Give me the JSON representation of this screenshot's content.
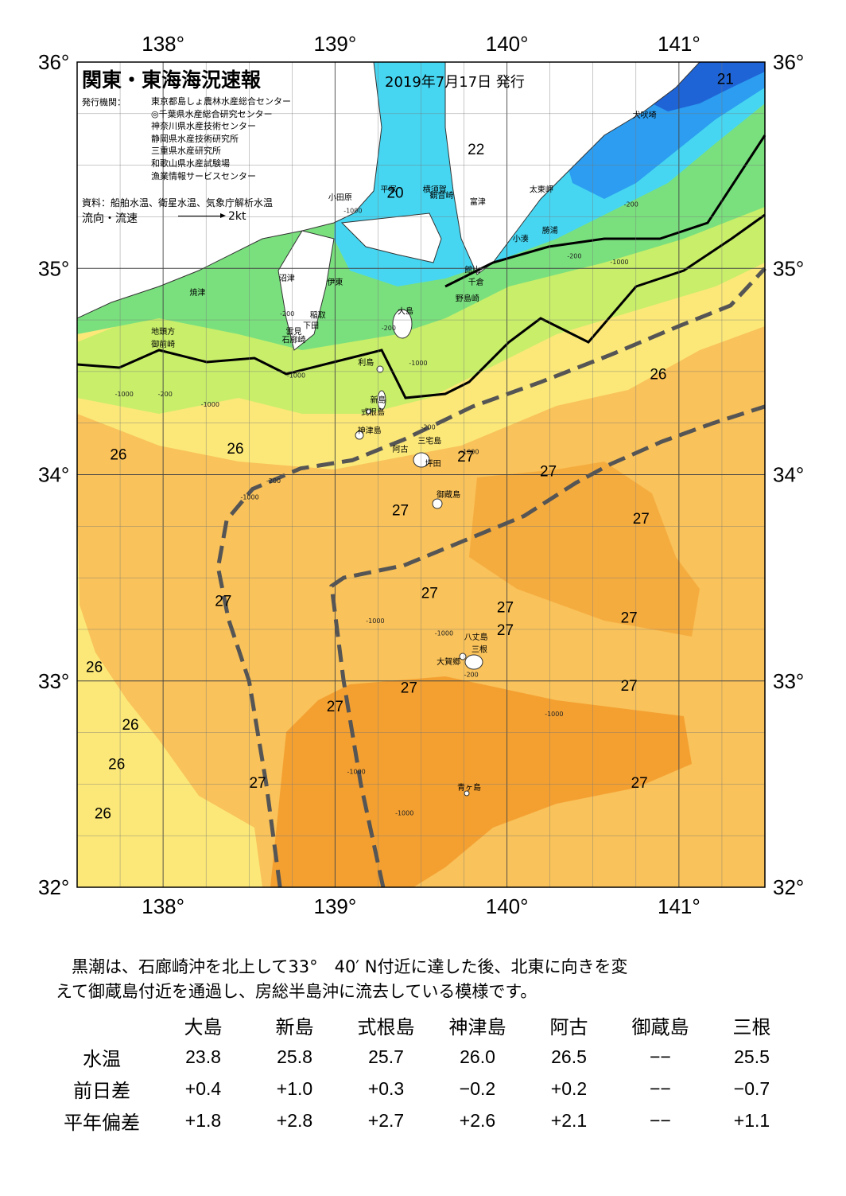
{
  "header": {
    "title": "関東・東海海況速報",
    "date": "2019年7月17日 発行",
    "issuer_key": "発行機関：",
    "issuers": [
      "東京都島しょ農林水産総合センター",
      "◎千葉県水産総合研究センター",
      "神奈川県水産技術センター",
      "静岡県水産技術研究所",
      "三重県水産研究所",
      "和歌山県水産試験場",
      "漁業情報サービスセンター"
    ],
    "source": "資料：船舶水温、衛星水温、気象庁解析水温",
    "legend_label": "流向・流速",
    "legend_speed": "2kt"
  },
  "axes": {
    "lon_ticks": [
      "138°",
      "139°",
      "140°",
      "141°"
    ],
    "lat_ticks": [
      "36°",
      "35°",
      "34°",
      "33°",
      "32°"
    ],
    "lon_values": [
      138,
      139,
      140,
      141
    ],
    "lat_values": [
      36,
      35,
      34,
      33,
      32
    ],
    "lon_range": [
      137.5,
      141.5
    ],
    "lat_range": [
      32,
      36
    ]
  },
  "colors": {
    "t20": "#3a2a90",
    "t21": "#1f64d6",
    "t22": "#2c9df0",
    "t23": "#46d6f2",
    "t24": "#7ae07e",
    "t25": "#c8ee6a",
    "t26": "#fbe878",
    "t27": "#f9c25a",
    "t28": "#f39a2a",
    "kuroshio": "#555555"
  },
  "isotherm_labels": [
    {
      "text": "21",
      "lon": 141.27,
      "lat": 35.92
    },
    {
      "text": "22",
      "lon": 139.82,
      "lat": 35.58
    },
    {
      "text": "20",
      "lon": 139.35,
      "lat": 35.37
    },
    {
      "text": "26",
      "lon": 140.88,
      "lat": 34.49
    },
    {
      "text": "26",
      "lon": 137.74,
      "lat": 34.1
    },
    {
      "text": "26",
      "lon": 138.42,
      "lat": 34.13
    },
    {
      "text": "27",
      "lon": 139.76,
      "lat": 34.09
    },
    {
      "text": "27",
      "lon": 140.24,
      "lat": 34.02
    },
    {
      "text": "27",
      "lon": 139.38,
      "lat": 33.83
    },
    {
      "text": "27",
      "lon": 140.78,
      "lat": 33.79
    },
    {
      "text": "27",
      "lon": 139.55,
      "lat": 33.43
    },
    {
      "text": "27",
      "lon": 139.99,
      "lat": 33.36
    },
    {
      "text": "27",
      "lon": 138.35,
      "lat": 33.39
    },
    {
      "text": "27",
      "lon": 140.71,
      "lat": 33.31
    },
    {
      "text": "27",
      "lon": 139.99,
      "lat": 33.25
    },
    {
      "text": "26",
      "lon": 137.6,
      "lat": 33.07
    },
    {
      "text": "27",
      "lon": 139.43,
      "lat": 32.97
    },
    {
      "text": "27",
      "lon": 140.71,
      "lat": 32.98
    },
    {
      "text": "27",
      "lon": 139.0,
      "lat": 32.88
    },
    {
      "text": "26",
      "lon": 137.81,
      "lat": 32.79
    },
    {
      "text": "26",
      "lon": 137.73,
      "lat": 32.6
    },
    {
      "text": "27",
      "lon": 138.55,
      "lat": 32.51
    },
    {
      "text": "27",
      "lon": 140.77,
      "lat": 32.51
    },
    {
      "text": "26",
      "lon": 137.65,
      "lat": 32.36
    }
  ],
  "places": [
    {
      "name": "犬吠埼",
      "lon": 140.8,
      "lat": 35.73
    },
    {
      "name": "太東岬",
      "lon": 140.2,
      "lat": 35.37
    },
    {
      "name": "勝浦",
      "lon": 140.25,
      "lat": 35.17
    },
    {
      "name": "小湊",
      "lon": 140.08,
      "lat": 35.13
    },
    {
      "name": "富津",
      "lon": 139.83,
      "lat": 35.31
    },
    {
      "name": "横須賀",
      "lon": 139.58,
      "lat": 35.37
    },
    {
      "name": "観音崎",
      "lon": 139.62,
      "lat": 35.34
    },
    {
      "name": "平塚",
      "lon": 139.31,
      "lat": 35.37
    },
    {
      "name": "小田原",
      "lon": 139.03,
      "lat": 35.33
    },
    {
      "name": "館山",
      "lon": 139.8,
      "lat": 34.98
    },
    {
      "name": "千倉",
      "lon": 139.82,
      "lat": 34.92
    },
    {
      "name": "野島崎",
      "lon": 139.77,
      "lat": 34.84
    },
    {
      "name": "沼津",
      "lon": 138.72,
      "lat": 34.94
    },
    {
      "name": "伊東",
      "lon": 139.0,
      "lat": 34.92
    },
    {
      "name": "焼津",
      "lon": 138.2,
      "lat": 34.87
    },
    {
      "name": "大島",
      "lon": 139.41,
      "lat": 34.78
    },
    {
      "name": "稲取",
      "lon": 138.9,
      "lat": 34.76
    },
    {
      "name": "下田",
      "lon": 138.86,
      "lat": 34.71
    },
    {
      "name": "雲見",
      "lon": 138.76,
      "lat": 34.68
    },
    {
      "name": "石廊崎",
      "lon": 138.76,
      "lat": 34.64
    },
    {
      "name": "地頭方",
      "lon": 138.0,
      "lat": 34.68
    },
    {
      "name": "御前崎",
      "lon": 138.0,
      "lat": 34.62
    },
    {
      "name": "利島",
      "lon": 139.18,
      "lat": 34.53
    },
    {
      "name": "新島",
      "lon": 139.25,
      "lat": 34.35
    },
    {
      "name": "式根島",
      "lon": 139.22,
      "lat": 34.29
    },
    {
      "name": "神津島",
      "lon": 139.2,
      "lat": 34.2
    },
    {
      "name": "三宅島",
      "lon": 139.55,
      "lat": 34.15
    },
    {
      "name": "阿古",
      "lon": 139.38,
      "lat": 34.11
    },
    {
      "name": "坪田",
      "lon": 139.57,
      "lat": 34.04
    },
    {
      "name": "御蔵島",
      "lon": 139.66,
      "lat": 33.89
    },
    {
      "name": "八丈島",
      "lon": 139.82,
      "lat": 33.2
    },
    {
      "name": "三根",
      "lon": 139.84,
      "lat": 33.14
    },
    {
      "name": "大賀郷",
      "lon": 139.66,
      "lat": 33.08
    },
    {
      "name": "青ヶ島",
      "lon": 139.78,
      "lat": 32.47
    }
  ],
  "depth_labels": [
    {
      "text": "-1000",
      "lon": 137.72,
      "lat": 34.38
    },
    {
      "text": "-200",
      "lon": 137.97,
      "lat": 34.38
    },
    {
      "text": "-1000",
      "lon": 138.22,
      "lat": 34.33
    },
    {
      "text": "-200",
      "lon": 138.68,
      "lat": 34.77
    },
    {
      "text": "-1000",
      "lon": 138.72,
      "lat": 34.47
    },
    {
      "text": "-1000",
      "lon": 138.45,
      "lat": 33.88
    },
    {
      "text": "-200",
      "lon": 138.6,
      "lat": 33.96
    },
    {
      "text": "-200",
      "lon": 139.27,
      "lat": 34.7
    },
    {
      "text": "-1000",
      "lon": 139.43,
      "lat": 34.53
    },
    {
      "text": "-200",
      "lon": 139.5,
      "lat": 34.22
    },
    {
      "text": "-1000",
      "lon": 139.73,
      "lat": 34.1
    },
    {
      "text": "-1000",
      "lon": 139.18,
      "lat": 33.28
    },
    {
      "text": "-1000",
      "lon": 139.58,
      "lat": 33.22
    },
    {
      "text": "-200",
      "lon": 139.75,
      "lat": 33.02
    },
    {
      "text": "-1000",
      "lon": 140.22,
      "lat": 32.83
    },
    {
      "text": "-1000",
      "lon": 139.07,
      "lat": 32.55
    },
    {
      "text": "-1000",
      "lon": 139.35,
      "lat": 32.35
    },
    {
      "text": "-1000",
      "lon": 139.05,
      "lat": 35.27
    },
    {
      "text": "-200",
      "lon": 140.35,
      "lat": 35.05
    },
    {
      "text": "-1000",
      "lon": 140.6,
      "lat": 35.02
    },
    {
      "text": "-200",
      "lon": 140.68,
      "lat": 35.3
    }
  ],
  "kuroshio_paths": [
    [
      [
        139.28,
        32.0
      ],
      [
        139.15,
        32.5
      ],
      [
        139.05,
        33.0
      ],
      [
        138.98,
        33.46
      ],
      [
        139.05,
        33.5
      ],
      [
        139.4,
        33.56
      ],
      [
        139.75,
        33.68
      ],
      [
        140.1,
        33.8
      ],
      [
        140.4,
        33.96
      ],
      [
        140.6,
        34.05
      ],
      [
        140.9,
        34.16
      ],
      [
        141.2,
        34.25
      ],
      [
        141.5,
        34.33
      ]
    ],
    [
      [
        138.68,
        32.0
      ],
      [
        138.6,
        32.5
      ],
      [
        138.5,
        33.0
      ],
      [
        138.38,
        33.3
      ],
      [
        138.32,
        33.55
      ],
      [
        138.37,
        33.78
      ],
      [
        138.52,
        33.93
      ],
      [
        138.8,
        34.03
      ],
      [
        139.1,
        34.07
      ],
      [
        139.4,
        34.17
      ],
      [
        139.8,
        34.33
      ],
      [
        140.2,
        34.45
      ],
      [
        140.6,
        34.58
      ],
      [
        141.0,
        34.72
      ],
      [
        141.3,
        34.82
      ],
      [
        141.5,
        35.0
      ]
    ]
  ],
  "table": {
    "columns": [
      "大島",
      "新島",
      "式根島",
      "神津島",
      "阿古",
      "御蔵島",
      "三根"
    ],
    "rows": [
      {
        "label": "水温",
        "values": [
          "23.8",
          "25.8",
          "25.7",
          "26.0",
          "26.5",
          "−−",
          "25.5"
        ]
      },
      {
        "label": "前日差",
        "values": [
          "+0.4",
          "+1.0",
          "+0.3",
          "−0.2",
          "+0.2",
          "−−",
          "−0.7"
        ]
      },
      {
        "label": "平年偏差",
        "values": [
          "+1.8",
          "+2.8",
          "+2.7",
          "+2.6",
          "+2.1",
          "−−",
          "+1.1"
        ]
      }
    ]
  },
  "summary": [
    "黒潮は、石廊崎沖を北上して33°　40′ N付近に達した後、北東に向きを変",
    "えて御蔵島付近を通過し、房総半島沖に流去している模様です。"
  ]
}
